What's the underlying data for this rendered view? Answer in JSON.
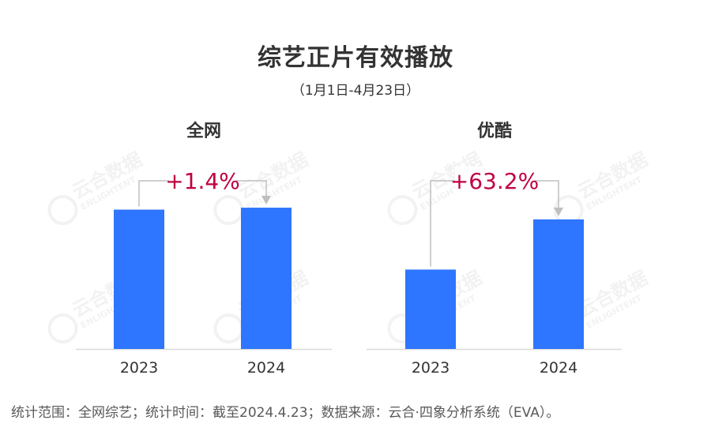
{
  "title": "综艺正片有效播放",
  "subtitle": "（1月1日-4月23日）",
  "footnote": "统计范围：全网综艺；统计时间：截至2024.4.23；数据来源：云合·四象分析系统（EVA）。",
  "watermark": {
    "cn": "云合数据",
    "en": "ENLIGHTENT"
  },
  "colors": {
    "bar": "#2E75FF",
    "change": "#C00040",
    "arrow": "#BFBFBF",
    "axis": "#D9D9D9",
    "text": "#333333"
  },
  "chart_data": [
    {
      "type": "bar",
      "title": "全网",
      "categories": [
        "2023",
        "2024"
      ],
      "values": [
        100,
        101.4
      ],
      "change_label": "+1.4%",
      "ylim": [
        0,
        102
      ]
    },
    {
      "type": "bar",
      "title": "优酷",
      "categories": [
        "2023",
        "2024"
      ],
      "values": [
        100,
        163.2
      ],
      "change_label": "+63.2%",
      "ylim": [
        0,
        179
      ]
    }
  ]
}
